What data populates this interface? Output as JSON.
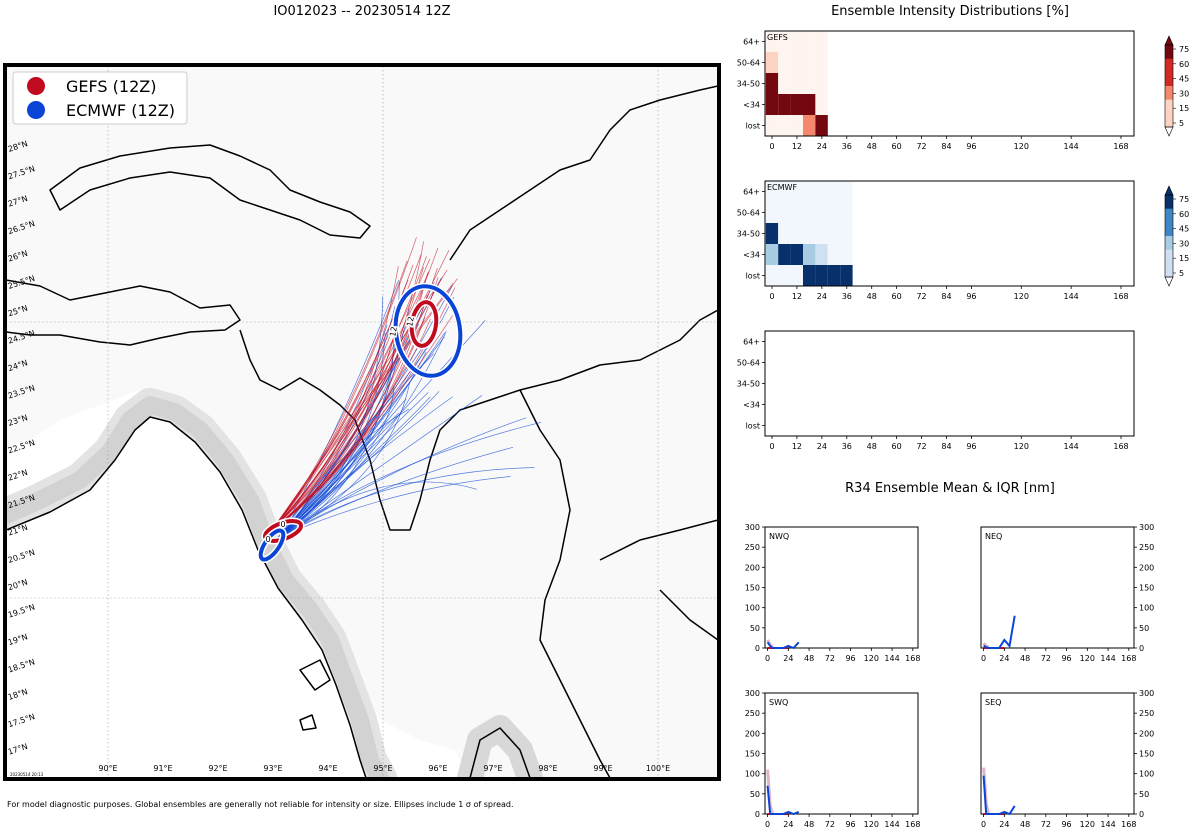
{
  "main_title": "IO012023 -- 20230514 12Z",
  "legend": [
    {
      "label": "GEFS (12Z)",
      "color": "#c00a1e"
    },
    {
      "label": "ECMWF (12Z)",
      "color": "#0a44d6"
    }
  ],
  "map": {
    "lat_labels": [
      "28°N",
      "27.5°N",
      "27°N",
      "26.5°N",
      "26°N",
      "25.5°N",
      "25°N",
      "24.5°N",
      "24°N",
      "23.5°N",
      "23°N",
      "22.5°N",
      "22°N",
      "21.5°N",
      "21°N",
      "20.5°N",
      "20°N",
      "19.5°N",
      "19°N",
      "18.5°N",
      "18°N",
      "17.5°N",
      "17°N"
    ],
    "lon_labels": [
      "90°E",
      "91°E",
      "92°E",
      "93°E",
      "94°E",
      "95°E",
      "96°E",
      "97°E",
      "98°E",
      "99°E",
      "100°E"
    ],
    "ellipse_labels": [
      "0",
      "0",
      "12",
      "12"
    ],
    "stamp": "20230514 20:13",
    "colors": {
      "land": "#f9f9f9",
      "coast_glow": "#cfcfcf",
      "gefs": "#c00a1e",
      "ecmwf": "#0a44d6"
    }
  },
  "intensity_title": "Ensemble Intensity Distributions [%]",
  "r34_title": "R34 Ensemble Mean & IQR [nm]",
  "footnote": "For model diagnostic purposes. Global ensembles are generally not reliable for intensity or size. Ellipses include 1 σ of spread.",
  "chart_data": [
    {
      "type": "heatmap",
      "name": "GEFS",
      "title": "GEFS",
      "x_ticks": [
        "0",
        "12",
        "24",
        "36",
        "48",
        "60",
        "72",
        "84",
        "96",
        "120",
        "144",
        "168"
      ],
      "y_labels": [
        "64+",
        "50-64",
        "34-50",
        "<34",
        "lost"
      ],
      "active_columns": 5,
      "cells": [
        [
          0,
          0,
          0,
          0,
          0
        ],
        [
          10,
          0,
          0,
          0,
          0
        ],
        [
          90,
          0,
          0,
          0,
          0
        ],
        [
          80,
          85,
          85,
          80,
          0
        ],
        [
          0,
          0,
          0,
          35,
          90
        ]
      ],
      "colorbar": {
        "ticks": [
          "75",
          "60",
          "45",
          "30",
          "15",
          "5"
        ],
        "scale": "Reds"
      }
    },
    {
      "type": "heatmap",
      "name": "ECMWF",
      "title": "ECMWF",
      "x_ticks": [
        "0",
        "12",
        "24",
        "36",
        "48",
        "60",
        "72",
        "84",
        "96",
        "120",
        "144",
        "168"
      ],
      "y_labels": [
        "64+",
        "50-64",
        "34-50",
        "<34",
        "lost"
      ],
      "active_columns": 7,
      "cells": [
        [
          0,
          0,
          0,
          0,
          0,
          0,
          0
        ],
        [
          0,
          0,
          0,
          0,
          0,
          0,
          0
        ],
        [
          90,
          0,
          0,
          0,
          0,
          0,
          0
        ],
        [
          20,
          90,
          90,
          25,
          10,
          0,
          0
        ],
        [
          0,
          0,
          0,
          90,
          90,
          90,
          90
        ]
      ],
      "colorbar": {
        "ticks": [
          "75",
          "60",
          "45",
          "30",
          "15",
          "5"
        ],
        "scale": "Blues"
      }
    },
    {
      "type": "heatmap",
      "name": "blank",
      "title": "",
      "x_ticks": [
        "0",
        "12",
        "24",
        "36",
        "48",
        "60",
        "72",
        "84",
        "96",
        "120",
        "144",
        "168"
      ],
      "y_labels": [
        "64+",
        "50-64",
        "34-50",
        "<34",
        "lost"
      ],
      "active_columns": 0,
      "cells": []
    },
    {
      "type": "line",
      "name": "NWQ",
      "title": "NWQ",
      "x_ticks": [
        "0",
        "24",
        "48",
        "72",
        "96",
        "120",
        "144",
        "168"
      ],
      "y_ticks": [
        "0",
        "50",
        "100",
        "150",
        "200",
        "250",
        "300"
      ],
      "ylim": [
        0,
        300
      ],
      "xlim": [
        -3,
        174
      ],
      "gefs": {
        "x": [
          0,
          6,
          12,
          18,
          24
        ],
        "y": [
          0,
          0,
          0,
          0,
          0
        ]
      },
      "ecmwf": {
        "x": [
          0,
          3,
          6,
          12,
          18,
          24,
          30,
          36
        ],
        "y": [
          14,
          5,
          0,
          0,
          0,
          5,
          0,
          14
        ]
      },
      "iqr": {
        "x": [
          0,
          3,
          6
        ],
        "y": [
          20,
          8,
          2
        ]
      }
    },
    {
      "type": "line",
      "name": "NEQ",
      "title": "NEQ",
      "x_ticks": [
        "0",
        "24",
        "48",
        "72",
        "96",
        "120",
        "144",
        "168"
      ],
      "y_ticks": [
        "0",
        "50",
        "100",
        "150",
        "200",
        "250",
        "300"
      ],
      "ylim": [
        0,
        300
      ],
      "xlim": [
        -3,
        174
      ],
      "gefs": {
        "x": [
          0,
          6,
          12,
          18,
          24
        ],
        "y": [
          0,
          0,
          0,
          0,
          0
        ]
      },
      "ecmwf": {
        "x": [
          0,
          3,
          6,
          12,
          18,
          24,
          30,
          36
        ],
        "y": [
          6,
          2,
          0,
          0,
          0,
          20,
          5,
          80
        ]
      },
      "iqr": {
        "x": [
          0,
          3,
          6
        ],
        "y": [
          12,
          5,
          2
        ]
      }
    },
    {
      "type": "line",
      "name": "SWQ",
      "title": "SWQ",
      "x_ticks": [
        "0",
        "24",
        "48",
        "72",
        "96",
        "120",
        "144",
        "168"
      ],
      "y_ticks": [
        "0",
        "50",
        "100",
        "150",
        "200",
        "250",
        "300"
      ],
      "ylim": [
        0,
        300
      ],
      "xlim": [
        -3,
        174
      ],
      "gefs": {
        "x": [
          0,
          6,
          12,
          18,
          24
        ],
        "y": [
          0,
          0,
          0,
          0,
          0
        ]
      },
      "ecmwf": {
        "x": [
          0,
          3,
          6,
          12,
          18,
          24,
          30,
          36
        ],
        "y": [
          70,
          0,
          0,
          0,
          0,
          5,
          0,
          5
        ]
      },
      "iqr": {
        "x": [
          0,
          1,
          3,
          6
        ],
        "y": [
          110,
          80,
          20,
          0
        ]
      }
    },
    {
      "type": "line",
      "name": "SEQ",
      "title": "SEQ",
      "x_ticks": [
        "0",
        "24",
        "48",
        "72",
        "96",
        "120",
        "144",
        "168"
      ],
      "y_ticks": [
        "0",
        "50",
        "100",
        "150",
        "200",
        "250",
        "300"
      ],
      "ylim": [
        0,
        300
      ],
      "xlim": [
        -3,
        174
      ],
      "gefs": {
        "x": [
          0,
          6,
          12,
          18,
          24
        ],
        "y": [
          0,
          0,
          0,
          0,
          0
        ]
      },
      "ecmwf": {
        "x": [
          0,
          3,
          6,
          12,
          18,
          24,
          30,
          36
        ],
        "y": [
          95,
          0,
          0,
          0,
          0,
          5,
          0,
          20
        ]
      },
      "iqr": {
        "x": [
          0,
          1,
          3,
          6
        ],
        "y": [
          115,
          90,
          25,
          0
        ]
      }
    }
  ]
}
